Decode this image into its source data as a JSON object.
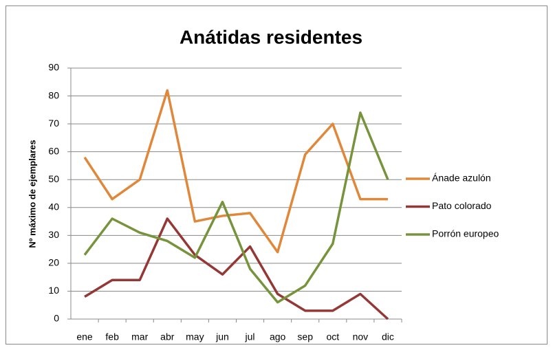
{
  "chart_data": {
    "type": "line",
    "title": "Anátidas residentes",
    "y_label": "Nº máximo de ejemplares",
    "categories": [
      "ene",
      "feb",
      "mar",
      "abr",
      "may",
      "jun",
      "jul",
      "ago",
      "sep",
      "oct",
      "nov",
      "dic"
    ],
    "series": [
      {
        "name": "Ánade azulón",
        "color": "#e0873a",
        "values": [
          58,
          43,
          50,
          82,
          35,
          37,
          38,
          24,
          59,
          70,
          43,
          43
        ]
      },
      {
        "name": "Pato colorado",
        "color": "#953735",
        "values": [
          8,
          14,
          14,
          36,
          23,
          16,
          26,
          9,
          3,
          3,
          9,
          0
        ]
      },
      {
        "name": "Porrón europeo",
        "color": "#77933c",
        "values": [
          23,
          36,
          31,
          28,
          22,
          42,
          18,
          6,
          12,
          27,
          74,
          50
        ]
      }
    ],
    "ylim": [
      0,
      90
    ],
    "yticks": [
      0,
      10,
      20,
      30,
      40,
      50,
      60,
      70,
      80,
      90
    ],
    "grid": true,
    "legend": "right"
  }
}
